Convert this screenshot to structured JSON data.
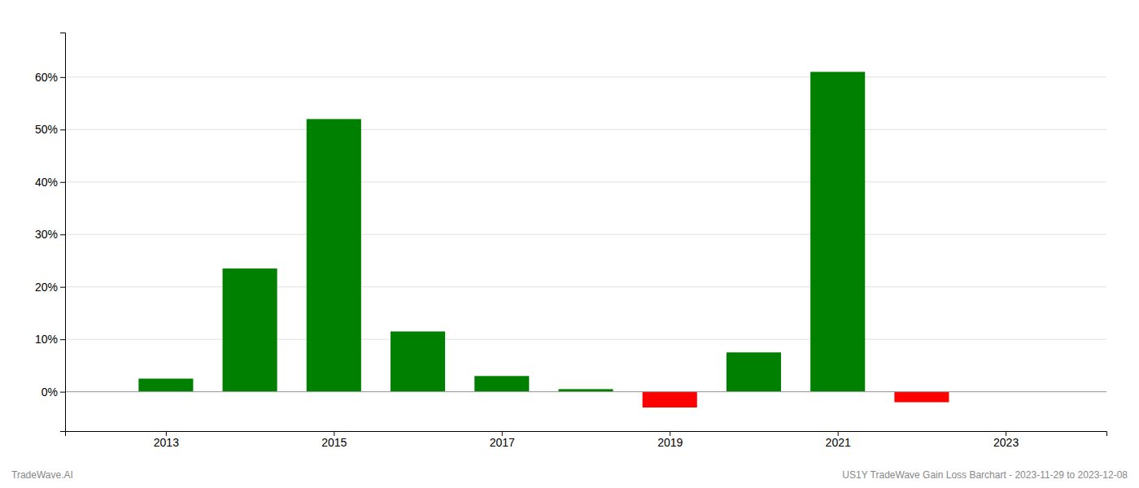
{
  "chart_data": {
    "type": "bar",
    "x": [
      2013,
      2014,
      2015,
      2016,
      2017,
      2018,
      2019,
      2020,
      2021,
      2022,
      2023
    ],
    "values": [
      0.025,
      0.235,
      0.52,
      0.115,
      0.03,
      0.005,
      -0.03,
      0.075,
      0.61,
      -0.02,
      0.0
    ],
    "colors": [
      "#008000",
      "#008000",
      "#008000",
      "#008000",
      "#008000",
      "#008000",
      "#ff0000",
      "#008000",
      "#008000",
      "#ff0000",
      "#008000"
    ],
    "xlim": [
      2011.8,
      2024.2
    ],
    "xticks": [
      2013,
      2015,
      2017,
      2019,
      2021,
      2023
    ],
    "ylim": [
      -0.075,
      0.685
    ],
    "yticks": [
      {
        "value": 0.0,
        "label": "0%"
      },
      {
        "value": 0.1,
        "label": "10%"
      },
      {
        "value": 0.2,
        "label": "20%"
      },
      {
        "value": 0.3,
        "label": "30%"
      },
      {
        "value": 0.4,
        "label": "40%"
      },
      {
        "value": 0.5,
        "label": "50%"
      },
      {
        "value": 0.6,
        "label": "60%"
      }
    ],
    "grid": true,
    "annotations": [
      "TradeWave.AI",
      "US1Y TradeWave Gain Loss Barchart - 2023-11-29 to 2023-12-08"
    ]
  }
}
